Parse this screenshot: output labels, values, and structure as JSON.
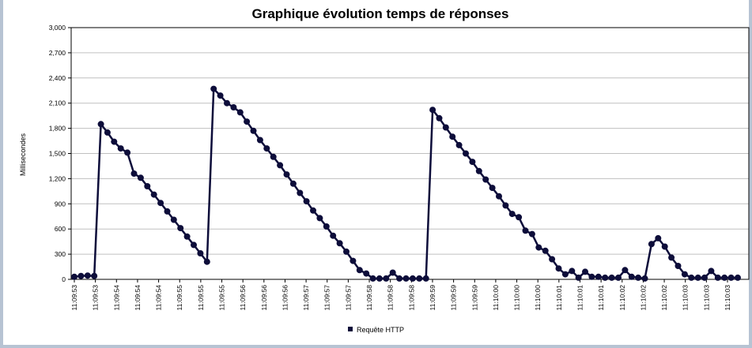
{
  "chart_data": {
    "type": "line",
    "title": "Graphique évolution temps de réponses",
    "xlabel": "",
    "ylabel": "Millisecondes",
    "ylim": [
      0,
      3000
    ],
    "yticks": [
      0,
      300,
      600,
      900,
      1200,
      1500,
      1800,
      2100,
      2400,
      2700,
      3000
    ],
    "yticklabels": [
      "0",
      "300",
      "600",
      "900",
      "1,200",
      "1,500",
      "1,800",
      "2,100",
      "2,400",
      "2,700",
      "3,000"
    ],
    "xticklabels": [
      "11:09:53",
      "11:09:53",
      "11:09:54",
      "11:09:54",
      "11:09:54",
      "11:09:55",
      "11:09:55",
      "11:09:55",
      "11:09:56",
      "11:09:56",
      "11:09:56",
      "11:09:57",
      "11:09:57",
      "11:09:57",
      "11:09:58",
      "11:09:58",
      "11:09:58",
      "11:09:59",
      "11:09:59",
      "11:09:59",
      "11:10:00",
      "11:10:00",
      "11:10:00",
      "11:10:01",
      "11:10:01",
      "11:10:01",
      "11:10:02",
      "11:10:02",
      "11:10:02",
      "11:10:03",
      "11:10:03",
      "11:10:03"
    ],
    "grid": true,
    "legend_position": "bottom",
    "color": "#0d0d3a",
    "series": [
      {
        "name": "Requête HTTP",
        "values": [
          30,
          40,
          45,
          40,
          1850,
          1750,
          1640,
          1560,
          1510,
          1260,
          1210,
          1110,
          1010,
          910,
          810,
          710,
          610,
          510,
          410,
          310,
          210,
          2270,
          2190,
          2100,
          2050,
          1990,
          1880,
          1770,
          1660,
          1560,
          1460,
          1360,
          1250,
          1140,
          1030,
          930,
          820,
          730,
          630,
          520,
          430,
          330,
          220,
          110,
          70,
          10,
          10,
          10,
          80,
          10,
          10,
          10,
          10,
          10,
          2020,
          1920,
          1810,
          1700,
          1600,
          1500,
          1400,
          1290,
          1190,
          1090,
          990,
          880,
          780,
          740,
          580,
          540,
          380,
          340,
          240,
          130,
          60,
          100,
          20,
          90,
          30,
          30,
          20,
          20,
          20,
          110,
          30,
          20,
          10,
          420,
          490,
          390,
          260,
          160,
          60,
          20,
          20,
          20,
          100,
          20,
          20,
          20,
          20
        ]
      }
    ]
  }
}
